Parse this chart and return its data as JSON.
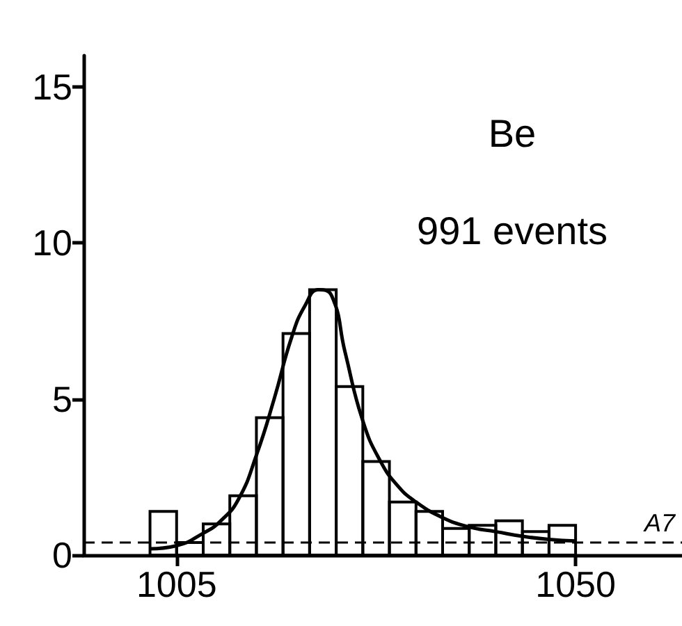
{
  "chart_data": {
    "type": "histogram",
    "bins": [
      1002,
      1005,
      1008,
      1011,
      1014,
      1017,
      1020,
      1023,
      1026,
      1029,
      1032,
      1035,
      1038,
      1041,
      1044,
      1047,
      1050
    ],
    "values": [
      1.4,
      0.4,
      1.0,
      1.9,
      4.4,
      7.1,
      8.5,
      5.4,
      3.0,
      1.7,
      1.4,
      0.85,
      0.95,
      1.1,
      0.75,
      0.95
    ],
    "color": "#000000",
    "series": [
      {
        "type": "line",
        "color": "#000000",
        "x": [
          1002,
          1005,
          1008,
          1010,
          1012,
          1014,
          1016,
          1018,
          1019.5,
          1021,
          1022.5,
          1024,
          1026,
          1028,
          1030,
          1032,
          1035,
          1038,
          1041,
          1044,
          1047,
          1050
        ],
        "values": [
          0.2,
          0.3,
          0.7,
          1.1,
          1.8,
          3.2,
          5.0,
          7.0,
          8.0,
          8.5,
          8.3,
          6.5,
          4.3,
          3.0,
          2.2,
          1.7,
          1.2,
          0.9,
          0.75,
          0.6,
          0.5,
          0.45
        ]
      }
    ],
    "ref_lines": [
      {
        "axis": "y",
        "value": 0.4,
        "label": "A7",
        "line_style": "dashed",
        "color": "#000000"
      }
    ],
    "annotations": [
      "Be",
      "991 events"
    ],
    "xlim": [
      994.5,
      1062
    ],
    "xticks": [
      1005,
      1050
    ],
    "ylim": [
      0,
      16
    ],
    "yticks": [
      0,
      5,
      10,
      15
    ],
    "grid": false,
    "legend": false,
    "marker": "none"
  }
}
